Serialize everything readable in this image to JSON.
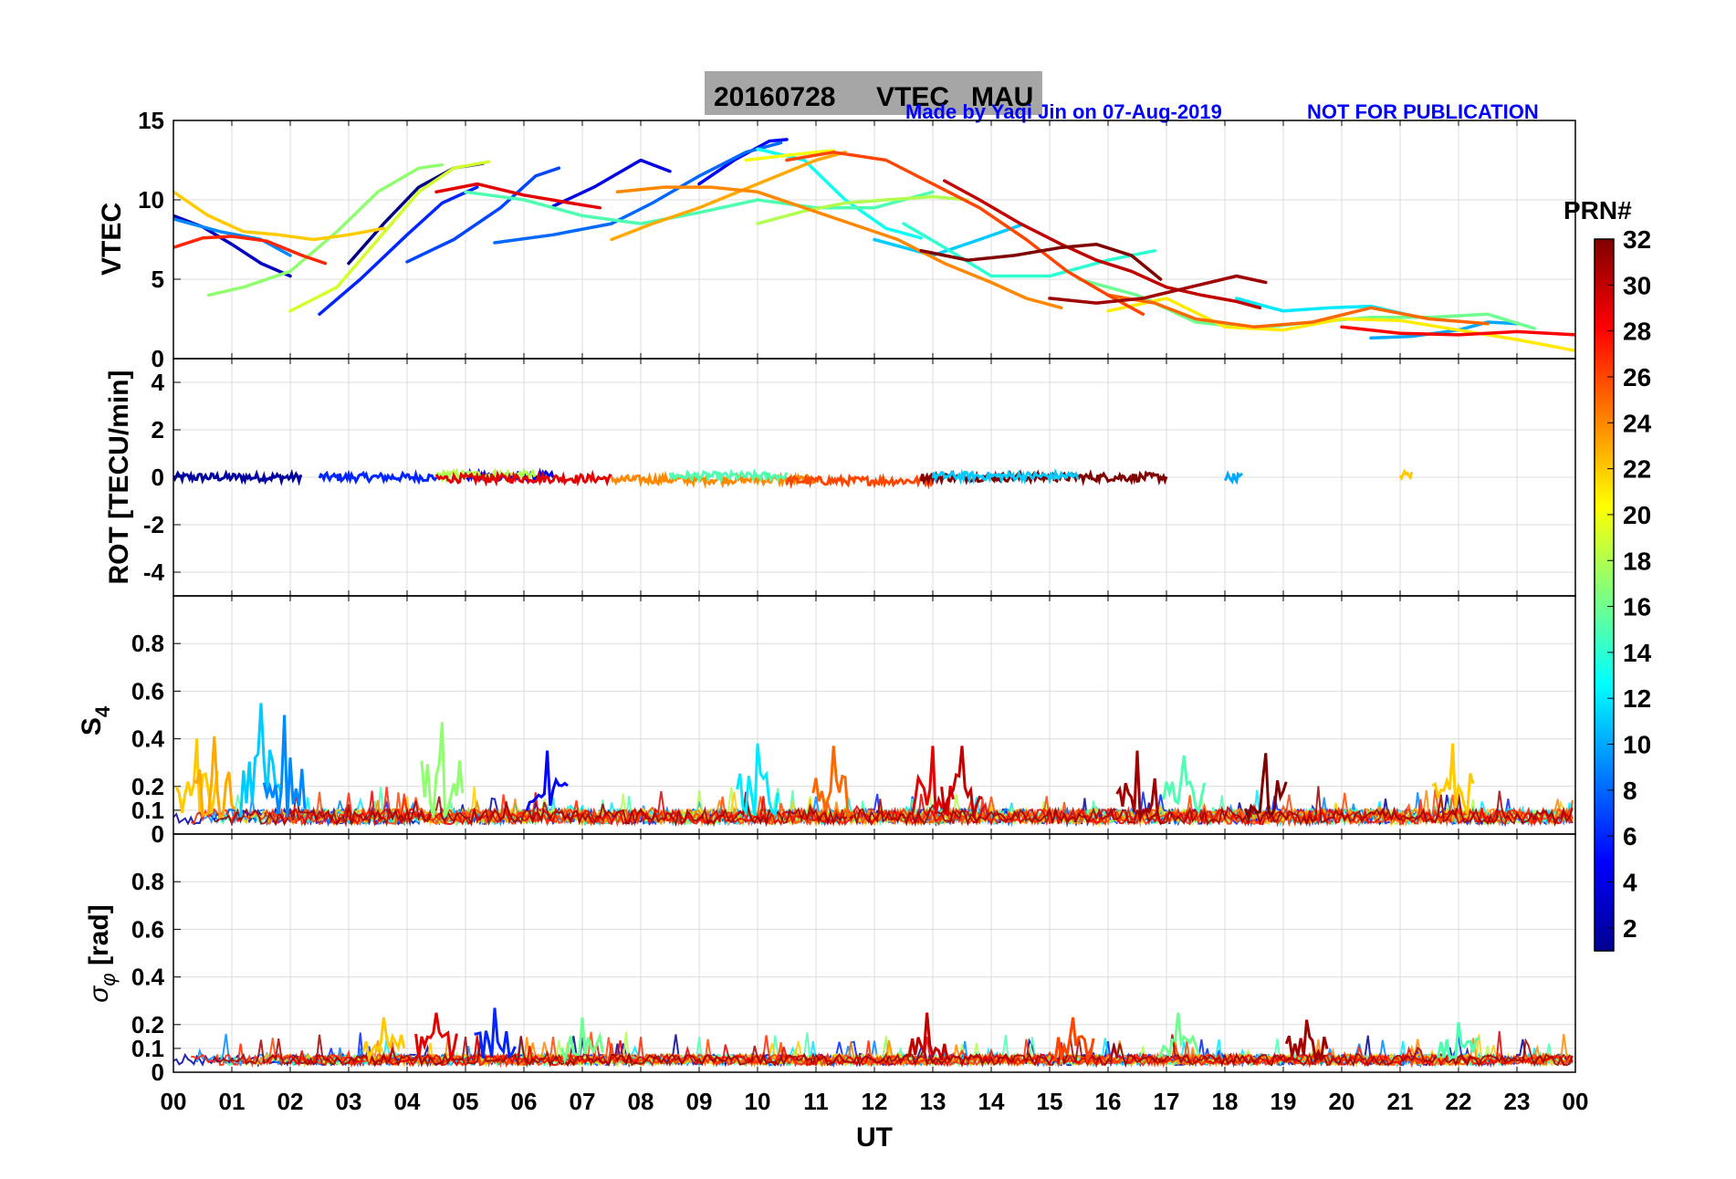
{
  "header": {
    "title_date": "20160728",
    "title_product": "VTEC",
    "title_station": "MAU",
    "credit": "Made by Yaqi Jin on 07-Aug-2019",
    "notice": "NOT FOR PUBLICATION",
    "credit_color": "#0000ff",
    "title_box_color": "#a6a6a6"
  },
  "colorbar": {
    "title": "PRN#",
    "range": [
      1,
      32
    ],
    "ticks": [
      "2",
      "4",
      "6",
      "8",
      "10",
      "12",
      "14",
      "16",
      "18",
      "20",
      "22",
      "24",
      "26",
      "28",
      "30",
      "32"
    ],
    "colormap": "jet"
  },
  "x_axis": {
    "label": "UT",
    "range": [
      0,
      24
    ],
    "ticks": [
      "00",
      "01",
      "02",
      "03",
      "04",
      "05",
      "06",
      "07",
      "08",
      "09",
      "10",
      "11",
      "12",
      "13",
      "14",
      "15",
      "16",
      "17",
      "18",
      "19",
      "20",
      "21",
      "22",
      "23",
      "00"
    ]
  },
  "chart_data": [
    {
      "type": "line",
      "panel": "VTEC",
      "ylabel": "VTEC",
      "ylim": [
        0,
        15
      ],
      "yticks": [
        "0",
        "5",
        "10",
        "15"
      ],
      "xlim": [
        0,
        24
      ],
      "grid": true,
      "series": [
        {
          "prn": 1,
          "x": [
            3.0,
            3.6,
            4.2,
            4.8,
            5.3
          ],
          "y": [
            6.0,
            8.5,
            10.8,
            12.0,
            12.3
          ]
        },
        {
          "prn": 3,
          "x": [
            0.0,
            0.5,
            1.0,
            1.5,
            2.0
          ],
          "y": [
            9.0,
            8.3,
            7.2,
            6.0,
            5.2
          ]
        },
        {
          "prn": 4,
          "x": [
            6.5,
            7.2,
            8.0,
            8.5
          ],
          "y": [
            9.6,
            10.8,
            12.5,
            11.8
          ]
        },
        {
          "prn": 5,
          "x": [
            9.0,
            9.6,
            10.2,
            10.5
          ],
          "y": [
            11.0,
            12.5,
            13.7,
            13.8
          ]
        },
        {
          "prn": 6,
          "x": [
            2.5,
            3.2,
            4.0,
            4.6,
            5.2
          ],
          "y": [
            2.8,
            5.0,
            7.8,
            9.8,
            10.8
          ]
        },
        {
          "prn": 7,
          "x": [
            4.0,
            4.8,
            5.6,
            6.2,
            6.6
          ],
          "y": [
            6.1,
            7.5,
            9.5,
            11.5,
            12.0
          ]
        },
        {
          "prn": 8,
          "x": [
            5.5,
            6.5,
            7.5,
            8.2,
            9.0,
            9.8,
            10.4
          ],
          "y": [
            7.3,
            7.8,
            8.5,
            9.8,
            11.5,
            13.0,
            13.6
          ]
        },
        {
          "prn": 9,
          "x": [
            0.0,
            0.8,
            1.5,
            2.0
          ],
          "y": [
            8.8,
            8.0,
            7.5,
            6.5
          ]
        },
        {
          "prn": 10,
          "x": [
            20.5,
            21.2,
            22.0,
            22.5,
            23.0
          ],
          "y": [
            1.3,
            1.4,
            1.8,
            2.3,
            2.2
          ]
        },
        {
          "prn": 11,
          "x": [
            12.0,
            12.5,
            13.0,
            13.8,
            14.5
          ],
          "y": [
            7.5,
            7.0,
            6.5,
            7.5,
            8.4
          ]
        },
        {
          "prn": 12,
          "x": [
            18.2,
            19.0,
            19.8,
            20.5,
            21.2
          ],
          "y": [
            3.8,
            3.0,
            3.2,
            3.3,
            2.7
          ]
        },
        {
          "prn": 13,
          "x": [
            10.0,
            10.8,
            11.5,
            12.2,
            12.8
          ],
          "y": [
            13.2,
            12.5,
            10.0,
            8.2,
            7.6
          ]
        },
        {
          "prn": 14,
          "x": [
            12.5,
            13.2,
            14.0,
            15.0,
            16.0,
            16.8
          ],
          "y": [
            8.5,
            7.0,
            5.2,
            5.2,
            6.2,
            6.8
          ]
        },
        {
          "prn": 15,
          "x": [
            5.0,
            6.0,
            7.0,
            8.0,
            9.0,
            10.0,
            11.0,
            12.0,
            13.0
          ],
          "y": [
            10.5,
            10.0,
            9.0,
            8.5,
            9.2,
            10.0,
            9.5,
            9.5,
            10.5
          ]
        },
        {
          "prn": 16,
          "x": [
            15.5,
            16.5,
            17.5,
            18.5,
            19.5,
            20.5,
            21.5,
            22.5,
            23.3
          ],
          "y": [
            5.0,
            4.0,
            2.3,
            1.9,
            2.3,
            2.6,
            2.6,
            2.8,
            1.9
          ]
        },
        {
          "prn": 17,
          "x": [
            0.6,
            1.2,
            2.0,
            2.8,
            3.5,
            4.2,
            4.6
          ],
          "y": [
            4.0,
            4.5,
            5.5,
            8.0,
            10.5,
            12.0,
            12.2
          ]
        },
        {
          "prn": 18,
          "x": [
            10.0,
            10.8,
            11.5,
            12.2,
            13.0,
            13.6
          ],
          "y": [
            8.5,
            9.3,
            9.8,
            10.0,
            10.2,
            10.0
          ]
        },
        {
          "prn": 19,
          "x": [
            2.0,
            2.8,
            3.5,
            4.2,
            4.8,
            5.4
          ],
          "y": [
            3.0,
            4.5,
            7.5,
            10.5,
            12.0,
            12.4
          ]
        },
        {
          "prn": 20,
          "x": [
            9.8,
            10.5,
            11.0,
            11.3
          ],
          "y": [
            12.5,
            12.8,
            13.0,
            13.1
          ]
        },
        {
          "prn": 21,
          "x": [
            16.0,
            17.0,
            18.0,
            19.0,
            20.0,
            21.0,
            22.0,
            23.0,
            24.0
          ],
          "y": [
            3.0,
            3.8,
            2.0,
            1.8,
            2.5,
            2.4,
            1.8,
            1.2,
            0.5
          ]
        },
        {
          "prn": 22,
          "x": [
            0.0,
            0.6,
            1.2,
            1.8,
            2.4,
            3.0,
            3.6
          ],
          "y": [
            10.5,
            9.0,
            8.0,
            7.8,
            7.5,
            7.8,
            8.2
          ]
        },
        {
          "prn": 23,
          "x": [
            7.5,
            8.2,
            9.0,
            10.0,
            11.0,
            11.5
          ],
          "y": [
            7.5,
            8.5,
            9.5,
            11.0,
            12.5,
            13.0
          ]
        },
        {
          "prn": 24,
          "x": [
            7.6,
            8.4,
            9.2,
            10.0,
            10.8,
            11.6,
            12.4,
            13.2,
            14.0,
            14.6,
            15.2
          ],
          "y": [
            10.5,
            10.8,
            10.8,
            10.5,
            9.5,
            8.5,
            7.5,
            6.0,
            4.8,
            3.8,
            3.2
          ]
        },
        {
          "prn": 25,
          "x": [
            16.0,
            16.8,
            17.5,
            18.5,
            19.5,
            20.5,
            21.5,
            22.5
          ],
          "y": [
            4.0,
            3.5,
            2.5,
            2.0,
            2.3,
            3.2,
            2.5,
            2.2
          ]
        },
        {
          "prn": 26,
          "x": [
            10.5,
            11.3,
            12.2,
            13.0,
            13.8,
            14.6,
            15.3,
            16.0,
            16.6
          ],
          "y": [
            12.5,
            13.0,
            12.5,
            11.0,
            9.5,
            7.5,
            5.5,
            4.0,
            2.8
          ]
        },
        {
          "prn": 27,
          "x": [
            0.0,
            0.5,
            1.0,
            1.6,
            2.2,
            2.6
          ],
          "y": [
            7.0,
            7.6,
            7.7,
            7.4,
            6.5,
            6.0
          ]
        },
        {
          "prn": 28,
          "x": [
            20.0,
            21.0,
            22.0,
            23.0,
            24.0
          ],
          "y": [
            2.0,
            1.6,
            1.5,
            1.7,
            1.5
          ]
        },
        {
          "prn": 29,
          "x": [
            4.5,
            5.2,
            6.0,
            6.8,
            7.3
          ],
          "y": [
            10.5,
            11.0,
            10.3,
            9.8,
            9.5
          ]
        },
        {
          "prn": 30,
          "x": [
            13.2,
            13.8,
            14.5,
            15.2,
            15.8,
            16.4,
            17.0,
            17.6,
            18.2,
            18.6
          ],
          "y": [
            11.2,
            10.0,
            8.5,
            7.2,
            6.2,
            5.5,
            4.5,
            4.0,
            3.6,
            3.2
          ]
        },
        {
          "prn": 31,
          "x": [
            15.0,
            15.8,
            16.6,
            17.4,
            18.2,
            18.7
          ],
          "y": [
            3.8,
            3.5,
            3.8,
            4.5,
            5.2,
            4.8
          ]
        },
        {
          "prn": 32,
          "x": [
            12.8,
            13.6,
            14.4,
            15.2,
            15.8,
            16.4,
            16.9
          ],
          "y": [
            6.8,
            6.2,
            6.5,
            7.0,
            7.2,
            6.5,
            5.0
          ]
        }
      ]
    },
    {
      "type": "line",
      "panel": "ROT",
      "ylabel": "ROT [TECU/min]",
      "ylim": [
        -5,
        5
      ],
      "yticks": [
        "-4",
        "-2",
        "0",
        "2",
        "4"
      ],
      "xlim": [
        0,
        24
      ],
      "grid": true,
      "series": [
        {
          "prn": 2,
          "x": [
            0.0,
            2.2
          ],
          "y": [
            0.0,
            0.0
          ]
        },
        {
          "prn": 6,
          "x": [
            2.5,
            4.5
          ],
          "y": [
            0.0,
            0.0
          ]
        },
        {
          "prn": 4,
          "x": [
            5.0,
            6.5
          ],
          "y": [
            0.05,
            0.05
          ]
        },
        {
          "prn": 18,
          "x": [
            4.5,
            6.2
          ],
          "y": [
            0.1,
            0.1
          ]
        },
        {
          "prn": 29,
          "x": [
            4.5,
            7.5
          ],
          "y": [
            -0.05,
            -0.05
          ]
        },
        {
          "prn": 24,
          "x": [
            7.5,
            11.0
          ],
          "y": [
            -0.1,
            -0.1
          ]
        },
        {
          "prn": 15,
          "x": [
            8.5,
            10.5
          ],
          "y": [
            0.05,
            0.05
          ]
        },
        {
          "prn": 26,
          "x": [
            10.5,
            13.0
          ],
          "y": [
            -0.15,
            -0.15
          ]
        },
        {
          "prn": 32,
          "x": [
            12.8,
            17.0
          ],
          "y": [
            0.0,
            0.0
          ]
        },
        {
          "prn": 11,
          "x": [
            13.0,
            15.5
          ],
          "y": [
            0.05,
            0.05
          ]
        },
        {
          "prn": 10,
          "x": [
            18.0,
            18.3
          ],
          "y": [
            0.0,
            0.0
          ]
        },
        {
          "prn": 22,
          "x": [
            21.0,
            21.2
          ],
          "y": [
            0.1,
            0.1
          ]
        }
      ]
    },
    {
      "type": "line",
      "panel": "S4",
      "ylabel": "S4",
      "ylim": [
        0,
        1
      ],
      "yticks": [
        "0",
        "0.1",
        "0.2",
        "0.4",
        "0.6",
        "0.8"
      ],
      "xlim": [
        0,
        24
      ],
      "grid": true,
      "note": "noisy time series, baseline ~0.05-0.1 with spikes up to ~0.55",
      "spikes": [
        {
          "prn": 22,
          "x": 0.4,
          "y": 0.4
        },
        {
          "prn": 23,
          "x": 0.7,
          "y": 0.41
        },
        {
          "prn": 11,
          "x": 1.5,
          "y": 0.55
        },
        {
          "prn": 9,
          "x": 1.9,
          "y": 0.5
        },
        {
          "prn": 17,
          "x": 4.6,
          "y": 0.47
        },
        {
          "prn": 5,
          "x": 6.4,
          "y": 0.35
        },
        {
          "prn": 12,
          "x": 10.0,
          "y": 0.38
        },
        {
          "prn": 25,
          "x": 11.3,
          "y": 0.37
        },
        {
          "prn": 29,
          "x": 13.0,
          "y": 0.37
        },
        {
          "prn": 30,
          "x": 13.5,
          "y": 0.37
        },
        {
          "prn": 31,
          "x": 16.5,
          "y": 0.35
        },
        {
          "prn": 15,
          "x": 17.3,
          "y": 0.33
        },
        {
          "prn": 32,
          "x": 18.7,
          "y": 0.34
        },
        {
          "prn": 22,
          "x": 21.9,
          "y": 0.38
        }
      ],
      "baseline": 0.07
    },
    {
      "type": "line",
      "panel": "sigma_phi",
      "ylabel": "σ_φ [rad]",
      "ylim": [
        0,
        1
      ],
      "yticks": [
        "0",
        "0.1",
        "0.2",
        "0.4",
        "0.6",
        "0.8"
      ],
      "xlim": [
        0,
        24
      ],
      "grid": true,
      "note": "noisy time series, baseline ~0.05 with spikes up to ~0.27",
      "spikes": [
        {
          "prn": 6,
          "x": 5.5,
          "y": 0.27
        },
        {
          "prn": 29,
          "x": 4.5,
          "y": 0.25
        },
        {
          "prn": 22,
          "x": 3.6,
          "y": 0.23
        },
        {
          "prn": 16,
          "x": 7.0,
          "y": 0.23
        },
        {
          "prn": 30,
          "x": 12.9,
          "y": 0.25
        },
        {
          "prn": 26,
          "x": 15.4,
          "y": 0.23
        },
        {
          "prn": 16,
          "x": 17.2,
          "y": 0.25
        },
        {
          "prn": 31,
          "x": 19.4,
          "y": 0.22
        },
        {
          "prn": 15,
          "x": 22.0,
          "y": 0.21
        }
      ],
      "baseline": 0.05
    }
  ]
}
